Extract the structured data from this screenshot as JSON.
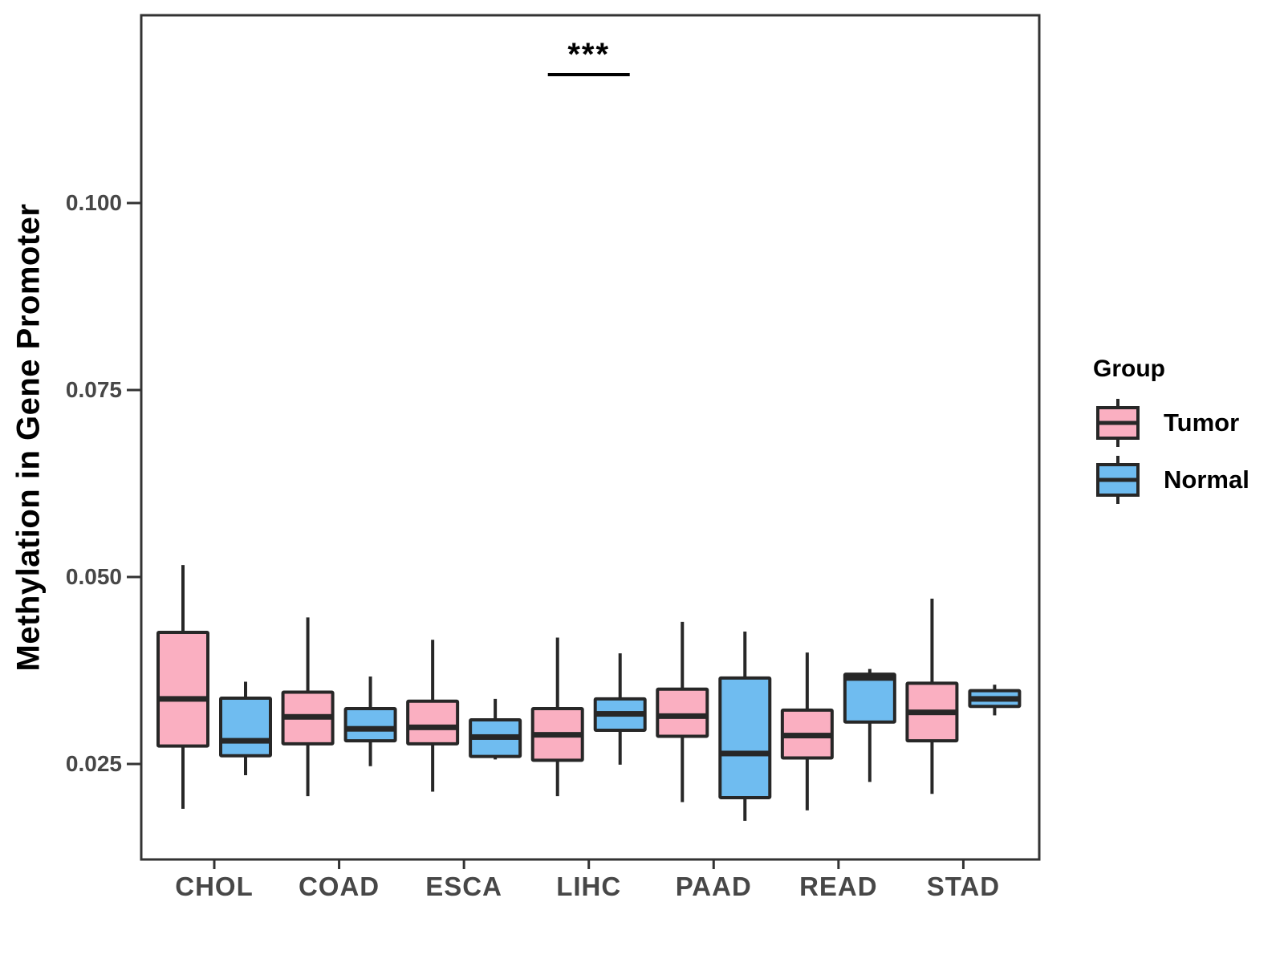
{
  "y_axis": {
    "title": "Methylation in Gene Promoter",
    "ticks": [
      "0.025",
      "0.050",
      "0.075",
      "0.100"
    ],
    "tick_values": [
      0.025,
      0.05,
      0.075,
      0.1
    ]
  },
  "x_axis": {
    "categories": [
      "CHOL",
      "COAD",
      "ESCA",
      "LIHC",
      "PAAD",
      "READ",
      "STAD"
    ]
  },
  "legend": {
    "title": "Group",
    "items": [
      {
        "label": "Tumor",
        "color": "#FAAFC1"
      },
      {
        "label": "Normal",
        "color": "#6FBCF0"
      }
    ]
  },
  "annotation": {
    "text": "***",
    "category": "LIHC"
  },
  "style": {
    "stroke_color": "#272727",
    "axis_color": "#333333",
    "tick_text_color": "#474747",
    "tumor_fill": "#FAAFC1",
    "normal_fill": "#6FBCF0"
  },
  "chart_data": {
    "type": "boxplot",
    "title": "",
    "xlabel": "",
    "ylabel": "Methylation in Gene Promoter",
    "ylim": [
      0.0122,
      0.1251
    ],
    "yticks": [
      0.025,
      0.05,
      0.075,
      0.1
    ],
    "grid": false,
    "legend_position": "right",
    "categories": [
      "CHOL",
      "COAD",
      "ESCA",
      "LIHC",
      "PAAD",
      "READ",
      "STAD"
    ],
    "series": [
      {
        "name": "Tumor",
        "color": "#FAAFC1",
        "boxes": [
          {
            "category": "CHOL",
            "min": 0.019,
            "q1": 0.0274,
            "median": 0.0337,
            "q3": 0.0426,
            "max": 0.0516
          },
          {
            "category": "COAD",
            "min": 0.0207,
            "q1": 0.0277,
            "median": 0.0313,
            "q3": 0.0346,
            "max": 0.0446
          },
          {
            "category": "ESCA",
            "min": 0.0213,
            "q1": 0.0277,
            "median": 0.0299,
            "q3": 0.0334,
            "max": 0.0416
          },
          {
            "category": "LIHC",
            "min": 0.0207,
            "q1": 0.0255,
            "median": 0.0289,
            "q3": 0.0324,
            "max": 0.0419
          },
          {
            "category": "PAAD",
            "min": 0.0199,
            "q1": 0.0287,
            "median": 0.0314,
            "q3": 0.035,
            "max": 0.044
          },
          {
            "category": "READ",
            "min": 0.0188,
            "q1": 0.0258,
            "median": 0.0288,
            "q3": 0.0322,
            "max": 0.0399
          },
          {
            "category": "STAD",
            "min": 0.021,
            "q1": 0.0281,
            "median": 0.0319,
            "q3": 0.0358,
            "max": 0.0471
          }
        ]
      },
      {
        "name": "Normal",
        "color": "#6FBCF0",
        "boxes": [
          {
            "category": "CHOL",
            "min": 0.0235,
            "q1": 0.0261,
            "median": 0.0281,
            "q3": 0.0338,
            "max": 0.036
          },
          {
            "category": "COAD",
            "min": 0.0247,
            "q1": 0.0281,
            "median": 0.0297,
            "q3": 0.0324,
            "max": 0.0367
          },
          {
            "category": "ESCA",
            "min": 0.0256,
            "q1": 0.026,
            "median": 0.0286,
            "q3": 0.0309,
            "max": 0.0337
          },
          {
            "category": "LIHC",
            "min": 0.0249,
            "q1": 0.0295,
            "median": 0.0317,
            "q3": 0.0337,
            "max": 0.0398
          },
          {
            "category": "PAAD",
            "min": 0.0174,
            "q1": 0.0205,
            "median": 0.0264,
            "q3": 0.0365,
            "max": 0.0427
          },
          {
            "category": "READ",
            "min": 0.0226,
            "q1": 0.0306,
            "median": 0.0365,
            "q3": 0.037,
            "max": 0.0377
          },
          {
            "category": "STAD",
            "min": 0.0315,
            "q1": 0.0327,
            "median": 0.0337,
            "q3": 0.0348,
            "max": 0.0356
          }
        ]
      }
    ],
    "significance": [
      {
        "category": "LIHC",
        "label": "***"
      }
    ]
  }
}
